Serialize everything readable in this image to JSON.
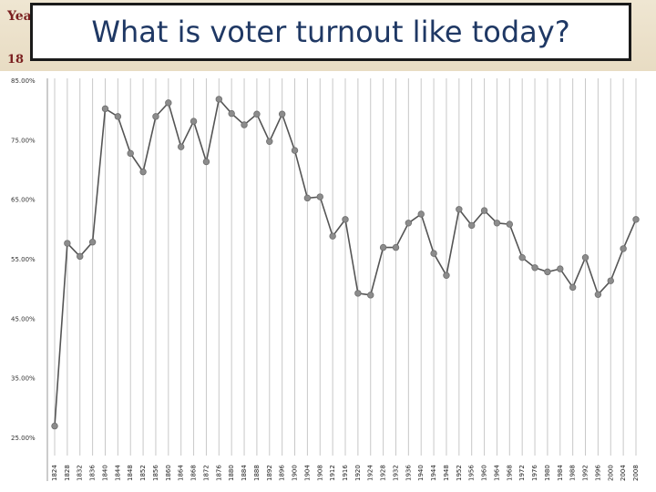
{
  "slide": {
    "title": "What is voter turnout like today?",
    "background_fragment_1": "Yea",
    "background_fragment_2": "18"
  },
  "colors": {
    "title_text": "#1f3864",
    "line": "#555555",
    "marker": "#8c8c8c",
    "grid": "#c8c8c8"
  },
  "chart_data": {
    "type": "line",
    "title": "",
    "xlabel": "",
    "ylabel": "",
    "ylim": [
      25,
      85
    ],
    "y_ticks": [
      "85.00%",
      "75.00%",
      "65.00%",
      "55.00%",
      "45.00%",
      "35.00%",
      "25.00%"
    ],
    "y_tick_values": [
      85,
      75,
      65,
      55,
      45,
      35,
      25
    ],
    "grid": "vertical",
    "x": [
      "1824",
      "1828",
      "1832",
      "1836",
      "1840",
      "1844",
      "1848",
      "1852",
      "1856",
      "1860",
      "1864",
      "1868",
      "1872",
      "1876",
      "1880",
      "1884",
      "1888",
      "1892",
      "1896",
      "1900",
      "1904",
      "1908",
      "1912",
      "1916",
      "1920",
      "1924",
      "1928",
      "1932",
      "1936",
      "1940",
      "1944",
      "1948",
      "1952",
      "1956",
      "1960",
      "1964",
      "1968",
      "1972",
      "1976",
      "1980",
      "1984",
      "1988",
      "1992",
      "1996",
      "2000",
      "2004",
      "2008"
    ],
    "series": [
      {
        "values": [
          26.9,
          57.6,
          55.4,
          57.8,
          80.2,
          78.9,
          72.7,
          69.6,
          78.9,
          81.2,
          73.8,
          78.1,
          71.3,
          81.8,
          79.4,
          77.5,
          79.3,
          74.7,
          79.3,
          73.2,
          65.2,
          65.4,
          58.8,
          61.6,
          49.2,
          48.9,
          56.9,
          56.9,
          61.0,
          62.5,
          55.9,
          52.2,
          63.3,
          60.6,
          63.1,
          61.0,
          60.8,
          55.2,
          53.5,
          52.8,
          53.3,
          50.2,
          55.2,
          49.0,
          51.3,
          56.7,
          61.6
        ]
      }
    ]
  }
}
